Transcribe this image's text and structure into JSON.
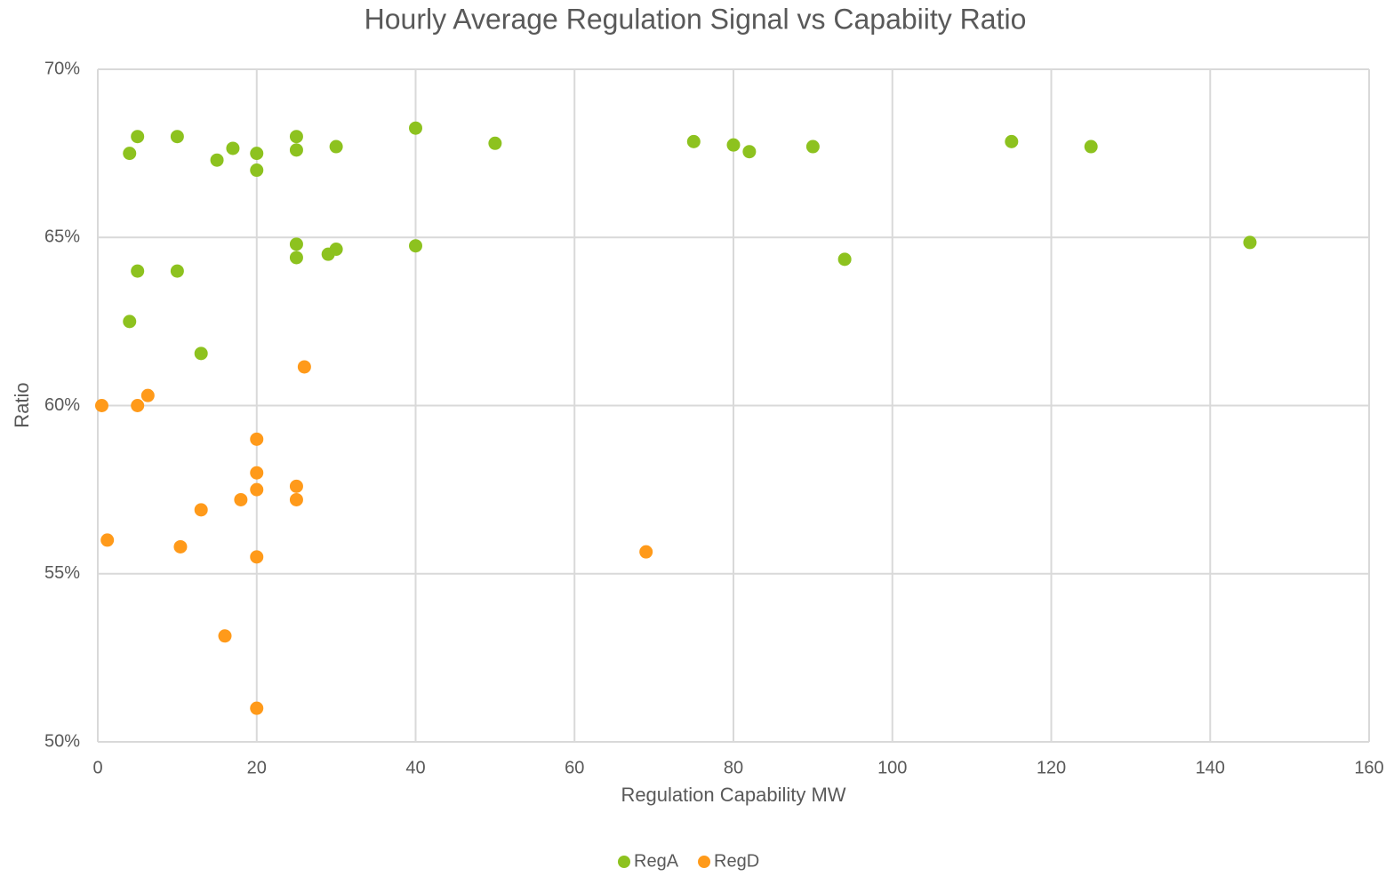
{
  "chart_data": {
    "type": "scatter",
    "title": "Hourly Average Regulation Signal vs Capabiity Ratio",
    "x_label": "Regulation Capability MW",
    "y_label": "Ratio",
    "xlim": [
      0,
      160
    ],
    "xticks": [
      0,
      20,
      40,
      60,
      80,
      100,
      120,
      140,
      160
    ],
    "ylim": [
      50,
      70
    ],
    "yticks": [
      {
        "value": 50,
        "label": "50%"
      },
      {
        "value": 55,
        "label": "55%"
      },
      {
        "value": 60,
        "label": "60%"
      },
      {
        "value": 65,
        "label": "65%"
      },
      {
        "value": 70,
        "label": "70%"
      }
    ],
    "grid": true,
    "legend": "bottom",
    "series": [
      {
        "name": "RegA",
        "color": "#8dc21f",
        "x": [
          4,
          5,
          10,
          15,
          17,
          20,
          20,
          25,
          25,
          30,
          40,
          50,
          75,
          80,
          82,
          90,
          115,
          125,
          25,
          25,
          29,
          30,
          40,
          94,
          145,
          5,
          10,
          4,
          13
        ],
        "values": [
          67.5,
          68.0,
          68.0,
          67.3,
          67.65,
          67.5,
          67.0,
          68.0,
          67.6,
          67.7,
          68.25,
          67.8,
          67.85,
          67.75,
          67.55,
          67.7,
          67.85,
          67.7,
          64.8,
          64.4,
          64.5,
          64.65,
          64.75,
          64.35,
          64.85,
          64.0,
          64.0,
          62.5,
          61.55
        ]
      },
      {
        "name": "RegD",
        "color": "#ff9a1a",
        "x": [
          0.5,
          1.2,
          5,
          6.3,
          10.4,
          13,
          16,
          18,
          20,
          20,
          20,
          20,
          20,
          25,
          25,
          26,
          69
        ],
        "values": [
          60.0,
          56.0,
          60.0,
          60.3,
          55.8,
          56.9,
          53.15,
          57.2,
          59.0,
          58.0,
          57.5,
          55.5,
          51.0,
          57.6,
          57.2,
          61.15,
          55.65
        ]
      }
    ]
  }
}
